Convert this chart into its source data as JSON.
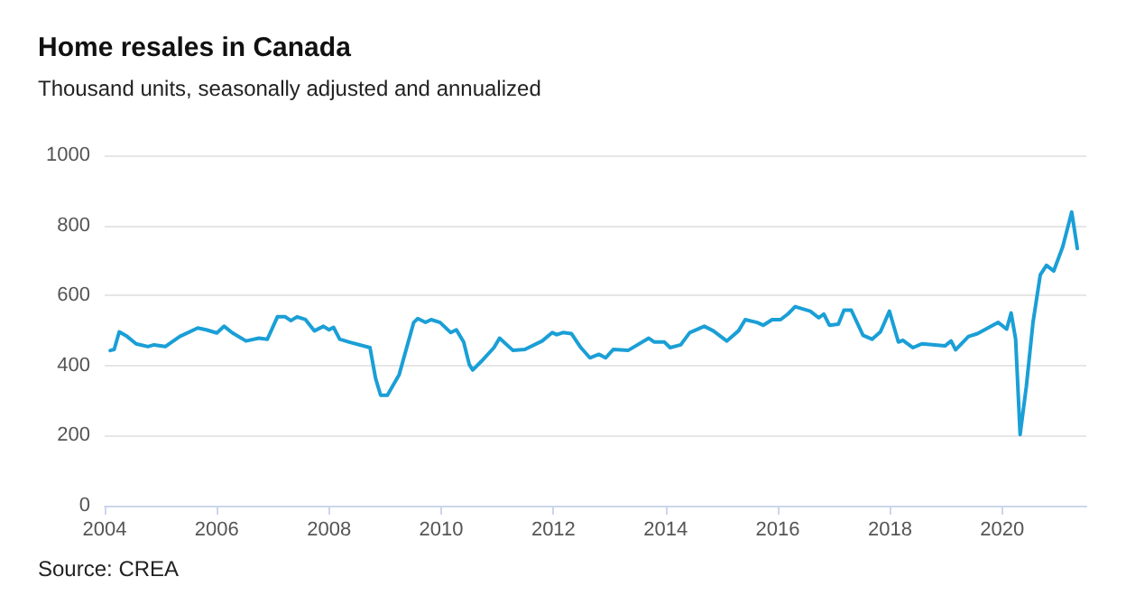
{
  "chart_data": {
    "type": "line",
    "title": "Home resales in Canada",
    "subtitle": "Thousand units, seasonally adjusted and annualized",
    "annotations": [
      "Source: CREA"
    ],
    "x": [
      2004.1,
      2004.17,
      2004.26,
      2004.4,
      2004.56,
      2004.77,
      2004.88,
      2005.08,
      2005.34,
      2005.66,
      2005.81,
      2006,
      2006.13,
      2006.28,
      2006.52,
      2006.75,
      2006.9,
      2007.08,
      2007.22,
      2007.32,
      2007.43,
      2007.58,
      2007.74,
      2007.9,
      2008,
      2008.08,
      2008.19,
      2008.36,
      2008.73,
      2008.83,
      2008.92,
      2009.04,
      2009.25,
      2009.51,
      2009.58,
      2009.72,
      2009.82,
      2009.98,
      2010.17,
      2010.27,
      2010.4,
      2010.5,
      2010.56,
      2010.71,
      2010.94,
      2011.04,
      2011.28,
      2011.49,
      2011.8,
      2011.98,
      2012.06,
      2012.17,
      2012.32,
      2012.49,
      2012.65,
      2012.81,
      2012.93,
      2013.07,
      2013.33,
      2013.7,
      2013.8,
      2013.98,
      2014.08,
      2014.27,
      2014.43,
      2014.69,
      2014.85,
      2015.09,
      2015.3,
      2015.42,
      2015.63,
      2015.74,
      2015.9,
      2016.05,
      2016.18,
      2016.31,
      2016.58,
      2016.73,
      2016.82,
      2016.92,
      2017.08,
      2017.18,
      2017.31,
      2017.52,
      2017.68,
      2017.83,
      2017.99,
      2018.15,
      2018.23,
      2018.41,
      2018.57,
      2018.98,
      2019.09,
      2019.17,
      2019.4,
      2019.56,
      2019.93,
      2020.08,
      2020.16,
      2020.24,
      2020.32,
      2020.43,
      2020.55,
      2020.68,
      2020.79,
      2020.92,
      2021.08,
      2021.24,
      2021.34
    ],
    "series": [
      {
        "color": "#1a9fd6",
        "values": [
          443,
          446,
          496,
          483,
          462,
          454,
          459,
          454,
          483,
          507,
          502,
          493,
          512,
          493,
          470,
          478,
          475,
          539,
          539,
          528,
          539,
          531,
          499,
          512,
          502,
          509,
          475,
          467,
          451,
          363,
          315,
          315,
          374,
          523,
          534,
          523,
          531,
          523,
          494,
          502,
          467,
          403,
          387,
          411,
          451,
          478,
          443,
          446,
          470,
          494,
          488,
          494,
          491,
          451,
          422,
          432,
          422,
          446,
          443,
          478,
          467,
          467,
          451,
          459,
          494,
          512,
          499,
          470,
          499,
          531,
          523,
          515,
          531,
          531,
          547,
          568,
          555,
          536,
          547,
          515,
          518,
          558,
          558,
          486,
          475,
          496,
          555,
          467,
          472,
          451,
          462,
          456,
          470,
          445,
          483,
          491,
          523,
          504,
          550,
          475,
          203,
          339,
          523,
          659,
          686,
          670,
          739,
          838,
          734
        ]
      }
    ],
    "xlim": [
      2004,
      2021.5
    ],
    "xticks": [
      2004,
      2006,
      2008,
      2010,
      2012,
      2014,
      2016,
      2018,
      2020
    ],
    "ylim": [
      0,
      1000
    ],
    "yticks": [
      0,
      200,
      400,
      600,
      800,
      1000
    ],
    "grid": "y",
    "marker": "none",
    "line_style": "solid"
  }
}
